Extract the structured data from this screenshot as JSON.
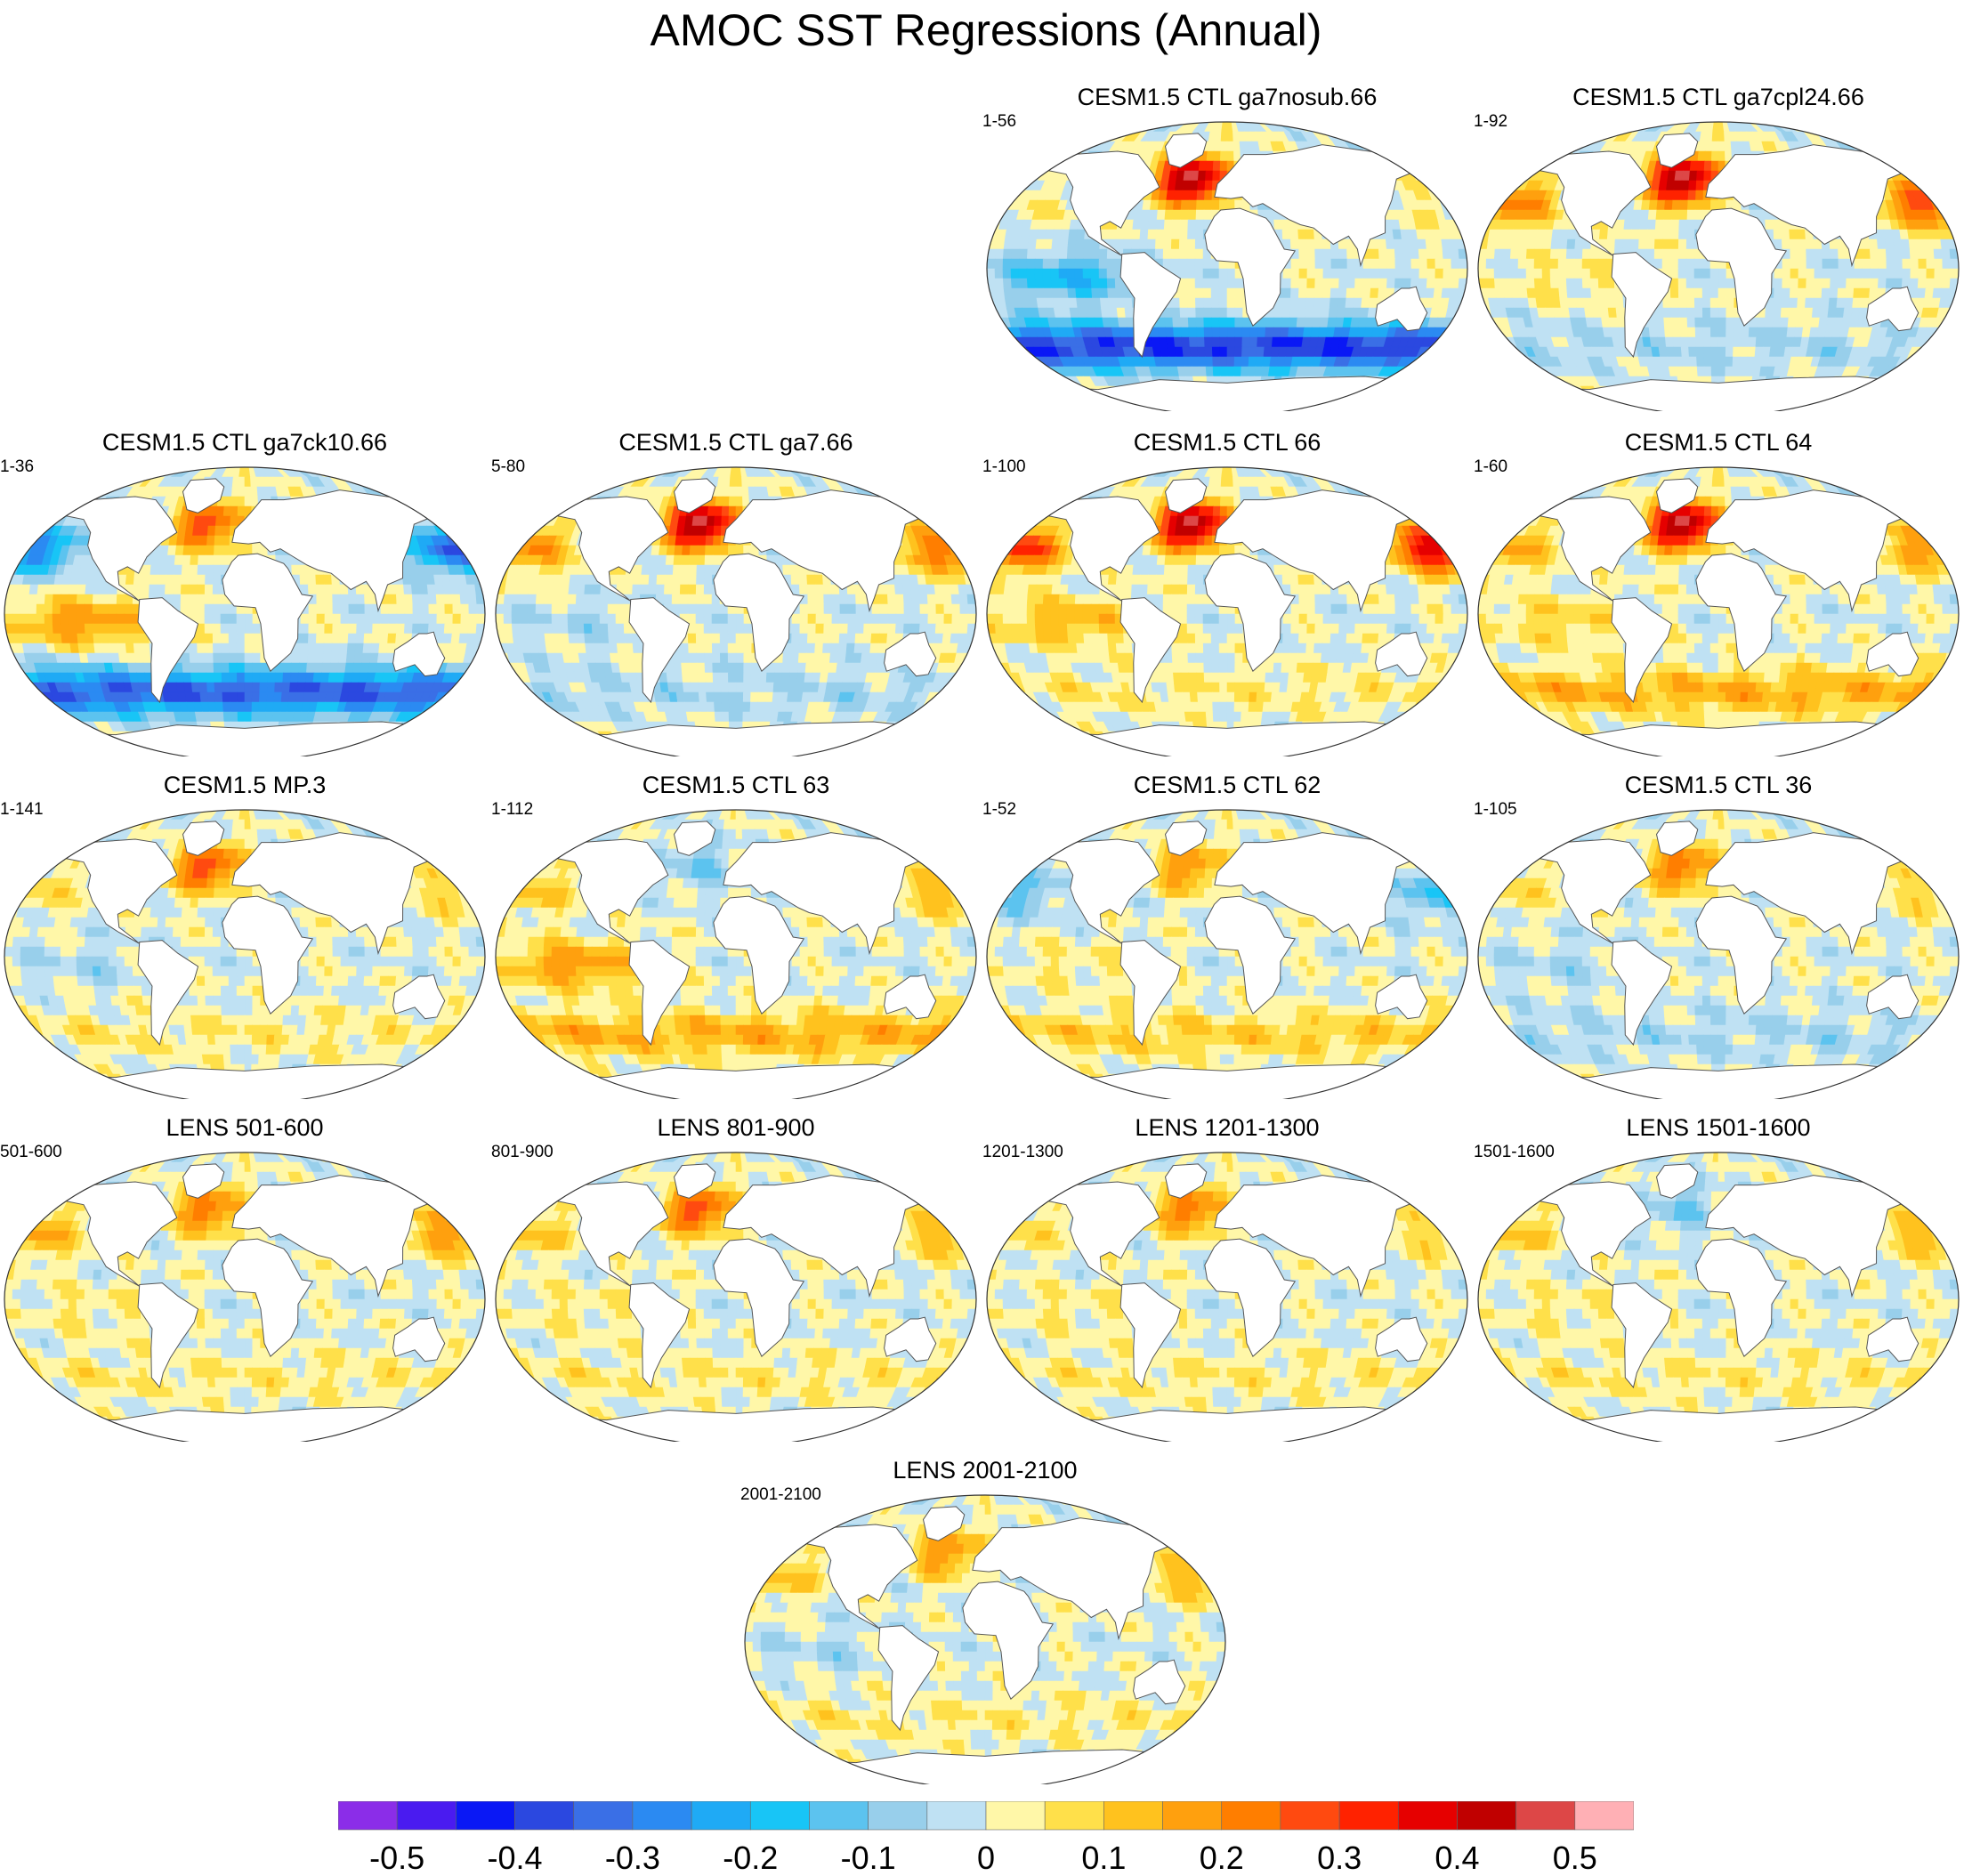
{
  "chart_data": {
    "type": "heatmap",
    "title": "AMOC SST Regressions (Annual)",
    "projection": "Robinson-like global map, centered on Atlantic",
    "colorbar": {
      "levels": [
        -0.55,
        -0.5,
        -0.45,
        -0.4,
        -0.35,
        -0.3,
        -0.25,
        -0.2,
        -0.15,
        -0.1,
        -0.05,
        0,
        0.05,
        0.1,
        0.15,
        0.2,
        0.25,
        0.3,
        0.35,
        0.4,
        0.45,
        0.5,
        0.55
      ],
      "colors": [
        "#8b2de8",
        "#4a1bf0",
        "#0a18f5",
        "#2b48e0",
        "#3a6fe6",
        "#2b8af2",
        "#1faaf5",
        "#18c5f6",
        "#5cc3ef",
        "#98cfeb",
        "#bfe1f3",
        "#fff7a8",
        "#ffe04a",
        "#ffc21e",
        "#ffa00e",
        "#ff7e00",
        "#ff4a10",
        "#ff2200",
        "#e60000",
        "#c00000",
        "#dd4747",
        "#ffb0b5"
      ],
      "tick_labels": [
        "-0.5",
        "-0.4",
        "-0.3",
        "-0.2",
        "-0.1",
        "0",
        "0.1",
        "0.2",
        "0.3",
        "0.4",
        "0.5"
      ],
      "tick_values": [
        -0.5,
        -0.4,
        -0.3,
        -0.2,
        -0.1,
        0,
        0.1,
        0.2,
        0.3,
        0.4,
        0.5
      ]
    },
    "panels": [
      {
        "id": "ga7nosub66",
        "title": "CESM1.5 CTL ga7nosub.66",
        "range": "1-56",
        "n_atl": 0.5,
        "n_pac": 0.05,
        "southern": -0.4,
        "tropics": -0.2
      },
      {
        "id": "ga7cpl2466",
        "title": "CESM1.5 CTL ga7cpl24.66",
        "range": "1-92",
        "n_atl": 0.5,
        "n_pac": 0.3,
        "southern": -0.05,
        "tropics": 0.05
      },
      {
        "id": "ga7ck1066",
        "title": "CESM1.5 CTL ga7ck10.66",
        "range": "1-36",
        "n_atl": 0.3,
        "n_pac": -0.35,
        "southern": -0.35,
        "tropics": 0.2
      },
      {
        "id": "ga766",
        "title": "CESM1.5 CTL ga7.66",
        "range": "5-80",
        "n_atl": 0.5,
        "n_pac": 0.25,
        "southern": -0.05,
        "tropics": -0.05
      },
      {
        "id": "ctl66",
        "title": "CESM1.5 CTL 66",
        "range": "1-100",
        "n_atl": 0.5,
        "n_pac": 0.4,
        "southern": 0.05,
        "tropics": 0.15
      },
      {
        "id": "ctl64",
        "title": "CESM1.5 CTL 64",
        "range": "1-60",
        "n_atl": 0.5,
        "n_pac": 0.2,
        "southern": 0.15,
        "tropics": 0.1
      },
      {
        "id": "mp3",
        "title": "CESM1.5 MP.3",
        "range": "1-141",
        "n_atl": 0.3,
        "n_pac": 0.1,
        "southern": 0.05,
        "tropics": -0.05
      },
      {
        "id": "ctl63",
        "title": "CESM1.5 CTL 63",
        "range": "1-112",
        "n_atl": -0.1,
        "n_pac": 0.15,
        "southern": 0.15,
        "tropics": 0.2
      },
      {
        "id": "ctl62",
        "title": "CESM1.5 CTL 62",
        "range": "1-52",
        "n_atl": 0.2,
        "n_pac": -0.15,
        "southern": 0.1,
        "tropics": 0.05
      },
      {
        "id": "ctl36",
        "title": "CESM1.5 CTL 36",
        "range": "1-105",
        "n_atl": 0.25,
        "n_pac": 0.1,
        "southern": -0.05,
        "tropics": -0.05
      },
      {
        "id": "lens501",
        "title": "LENS 501-600",
        "range": "501-600",
        "n_atl": 0.25,
        "n_pac": 0.2,
        "southern": 0.05,
        "tropics": 0.05
      },
      {
        "id": "lens801",
        "title": "LENS 801-900",
        "range": "801-900",
        "n_atl": 0.3,
        "n_pac": 0.15,
        "southern": 0.05,
        "tropics": 0.05
      },
      {
        "id": "lens1201",
        "title": "LENS 1201-1300",
        "range": "1201-1300",
        "n_atl": 0.25,
        "n_pac": 0.1,
        "southern": 0.05,
        "tropics": 0.05
      },
      {
        "id": "lens1501",
        "title": "LENS 1501-1600",
        "range": "1501-1600",
        "n_atl": -0.1,
        "n_pac": 0.15,
        "southern": 0.05,
        "tropics": 0.05
      },
      {
        "id": "lens2001",
        "title": "LENS 2001-2100",
        "range": "2001-2100",
        "n_atl": 0.2,
        "n_pac": 0.15,
        "southern": 0.05,
        "tropics": -0.05
      }
    ]
  }
}
